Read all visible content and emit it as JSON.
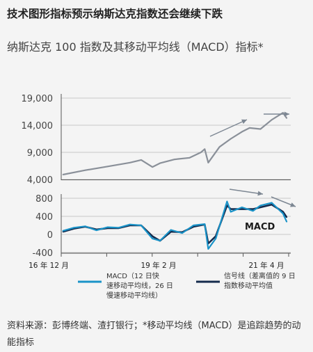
{
  "header": {
    "title": "技术图形指标预示纳斯达克指数还会继续下跌",
    "subtitle": "纳斯达克 100 指数及其移动平均线（MACD）指标*"
  },
  "source": "资料来源：彭博终端、渣打银行；*移动平均线（MACD）是追踪趋势的动能指标",
  "colors": {
    "price": "#8a9099",
    "macd": "#1a93c8",
    "signal": "#142a4c",
    "arrow": "#7d8793",
    "grid": "#c8c8c8"
  },
  "chart_data": [
    {
      "type": "line",
      "title": "",
      "xlabel": "",
      "ylabel": "",
      "x_ticks": [
        "16 年 12 月",
        "19 年 2 月",
        "21 年 4 月"
      ],
      "ylim": [
        4000,
        19000
      ],
      "y_ticks": [
        "19,000",
        "14,000",
        "9,000",
        "4,000"
      ],
      "series": [
        {
          "name": "",
          "x": [
            "2016-12",
            "2017-06",
            "2017-12",
            "2018-06",
            "2018-09",
            "2018-12",
            "2019-02",
            "2019-06",
            "2019-10",
            "2020-01",
            "2020-02",
            "2020-03",
            "2020-06",
            "2020-09",
            "2020-12",
            "2021-02",
            "2021-05",
            "2021-08",
            "2021-11",
            "2021-12"
          ],
          "values": [
            4900,
            5700,
            6400,
            7100,
            7600,
            6300,
            7000,
            7700,
            8000,
            9000,
            9600,
            7100,
            10000,
            11500,
            12800,
            13500,
            13300,
            15000,
            16300,
            15300
          ]
        }
      ]
    },
    {
      "type": "line",
      "title": "",
      "xlabel": "",
      "ylabel": "",
      "annotation": "MACD",
      "x_ticks": [
        "16 年 12 月",
        "19 年 2 月",
        "21 年 4 月"
      ],
      "ylim": [
        -400,
        800
      ],
      "y_ticks": [
        "800",
        "400",
        "0",
        "-400"
      ],
      "series": [
        {
          "name": "MACD（12 日快速移动平均线，26 日慢速移动平均线）",
          "x": [
            "2016-12",
            "2017-03",
            "2017-06",
            "2017-09",
            "2017-12",
            "2018-03",
            "2018-06",
            "2018-09",
            "2018-12",
            "2019-02",
            "2019-05",
            "2019-08",
            "2019-11",
            "2020-02",
            "2020-03",
            "2020-05",
            "2020-08",
            "2020-09",
            "2020-12",
            "2021-03",
            "2021-05",
            "2021-08",
            "2021-11",
            "2021-12"
          ],
          "values": [
            80,
            150,
            180,
            90,
            160,
            150,
            220,
            200,
            -90,
            -140,
            100,
            30,
            200,
            230,
            -320,
            -90,
            730,
            500,
            600,
            520,
            640,
            700,
            460,
            280
          ]
        },
        {
          "name": "信号线（差离值的 9 日指数移动平均值",
          "x": [
            "2016-12",
            "2017-03",
            "2017-06",
            "2017-09",
            "2017-12",
            "2018-03",
            "2018-06",
            "2018-09",
            "2018-12",
            "2019-02",
            "2019-05",
            "2019-08",
            "2019-11",
            "2020-02",
            "2020-03",
            "2020-05",
            "2020-08",
            "2020-09",
            "2020-12",
            "2021-03",
            "2021-05",
            "2021-08",
            "2021-11",
            "2021-12"
          ],
          "values": [
            60,
            130,
            170,
            110,
            140,
            140,
            200,
            200,
            -40,
            -140,
            60,
            50,
            170,
            220,
            -200,
            -40,
            640,
            560,
            560,
            560,
            600,
            660,
            500,
            380
          ]
        }
      ]
    }
  ]
}
